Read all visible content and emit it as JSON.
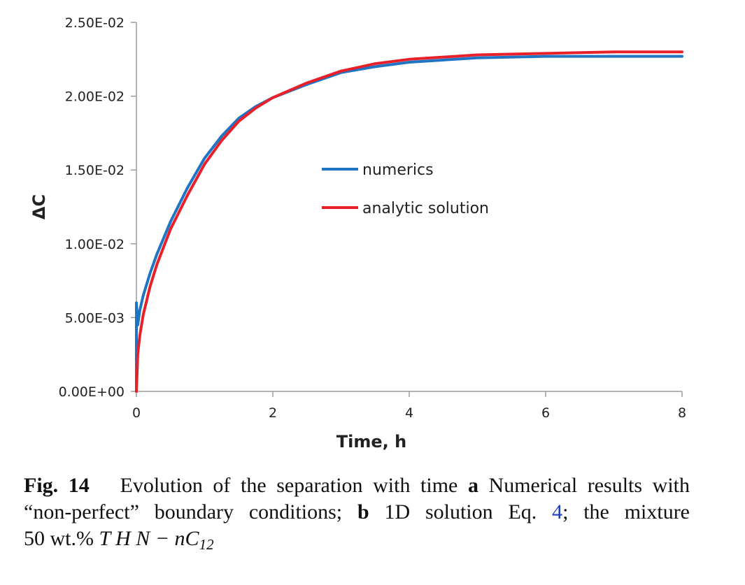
{
  "chart_data": {
    "type": "line",
    "xlabel": "Time, h",
    "ylabel": "ΔC",
    "xlim": [
      0,
      8
    ],
    "ylim": [
      0,
      0.025
    ],
    "x_ticks": [
      0,
      2,
      4,
      6,
      8
    ],
    "x_tick_labels": [
      "0",
      "2",
      "4",
      "6",
      "8"
    ],
    "y_ticks": [
      0,
      0.005,
      0.01,
      0.015,
      0.02,
      0.025
    ],
    "y_tick_labels": [
      "0.00E+00",
      "5.00E-03",
      "1.00E-02",
      "1.50E-02",
      "2.00E-02",
      "2.50E-02"
    ],
    "grid": false,
    "legend_position": "center-right",
    "series": [
      {
        "name": "numerics",
        "color": "#1f74c4",
        "x": [
          0,
          0,
          0.02,
          0.05,
          0.1,
          0.2,
          0.3,
          0.5,
          0.75,
          1,
          1.25,
          1.5,
          1.75,
          2,
          2.5,
          3,
          3.5,
          4,
          5,
          6,
          7,
          8
        ],
        "y": [
          0,
          0.006,
          0.0045,
          0.0055,
          0.0065,
          0.008,
          0.0093,
          0.0115,
          0.0138,
          0.0158,
          0.0173,
          0.0185,
          0.0193,
          0.0199,
          0.0208,
          0.0216,
          0.022,
          0.0223,
          0.0226,
          0.0227,
          0.0227,
          0.0227
        ]
      },
      {
        "name": "analytic solution",
        "color": "#e8202a",
        "x": [
          0,
          0.02,
          0.05,
          0.1,
          0.2,
          0.3,
          0.5,
          0.75,
          1,
          1.25,
          1.5,
          1.75,
          2,
          2.5,
          3,
          3.5,
          4,
          5,
          6,
          7,
          8
        ],
        "y": [
          0,
          0.0025,
          0.0038,
          0.0052,
          0.0071,
          0.0086,
          0.011,
          0.0133,
          0.0154,
          0.017,
          0.0183,
          0.0192,
          0.0199,
          0.0209,
          0.0217,
          0.0222,
          0.0225,
          0.0228,
          0.0229,
          0.023,
          0.023
        ]
      }
    ]
  },
  "caption": {
    "label": "Fig. 14",
    "line1_text": "Evolution of the separation with time",
    "panel_a": "a",
    "line1_rest": "Numerical results with",
    "line2_start": "“non-perfect” boundary conditions;",
    "panel_b": "b",
    "line2_rest": "1D solution Eq.",
    "eq_ref": "4",
    "line2_end": "; the mixture",
    "line3_start": "50 wt.%",
    "formula_main": "T H N − nC",
    "formula_sub": "12"
  }
}
